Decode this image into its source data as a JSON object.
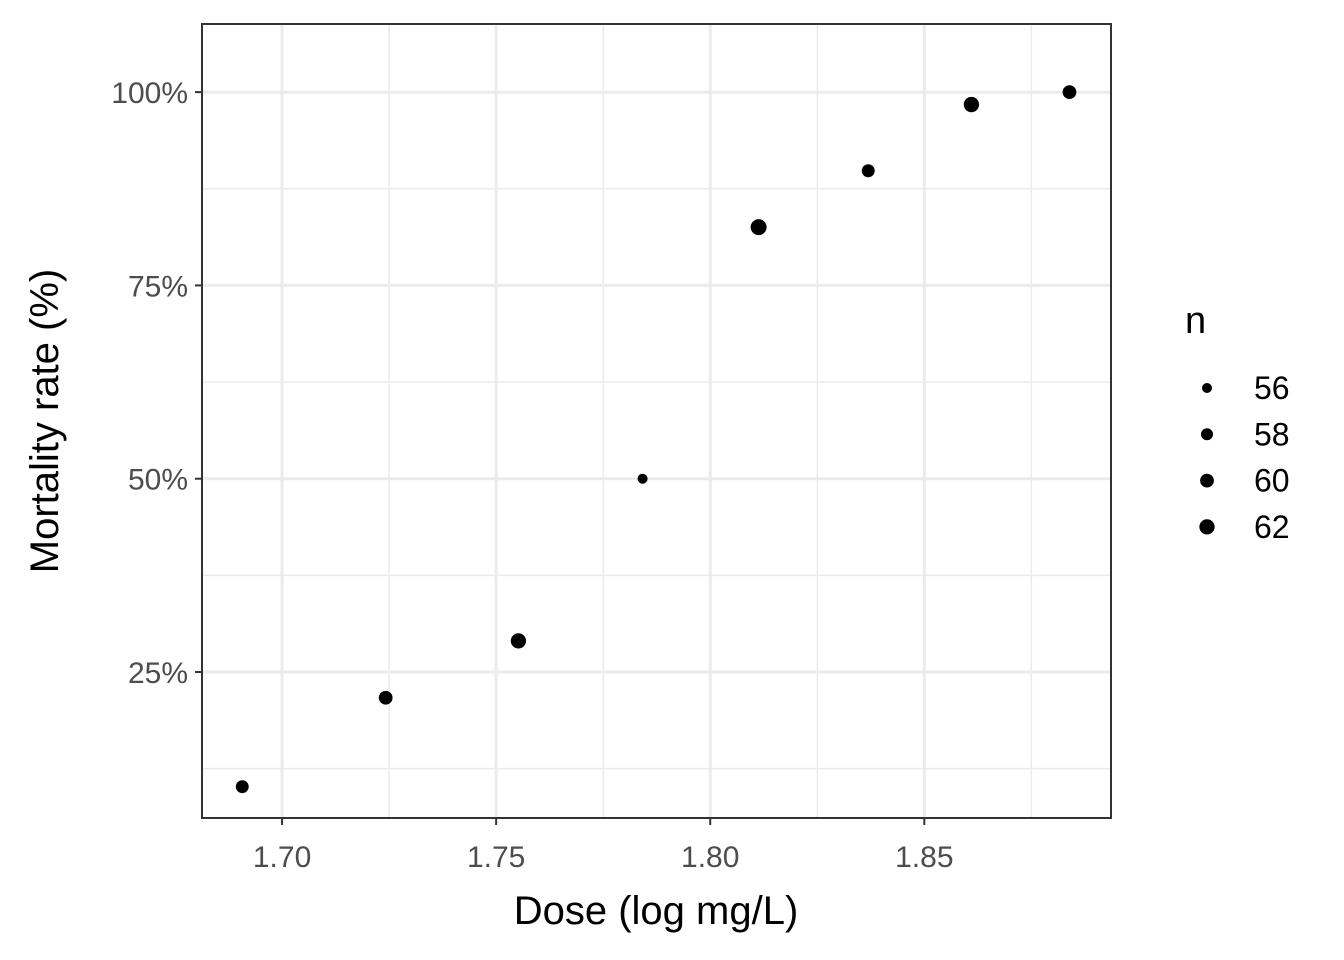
{
  "chart_data": {
    "type": "scatter",
    "xlabel": "Dose (log mg/L)",
    "ylabel": "Mortality rate (%)",
    "xlim": [
      1.6813,
      1.8936
    ],
    "ylim": [
      0.0612,
      1.0881
    ],
    "x_ticks": [
      1.7,
      1.75,
      1.8,
      1.85
    ],
    "x_tick_labels": [
      "1.70",
      "1.75",
      "1.80",
      "1.85"
    ],
    "x_minor_ticks": [
      1.725,
      1.775,
      1.825,
      1.875
    ],
    "y_ticks": [
      0.25,
      0.5,
      0.75,
      1.0
    ],
    "y_tick_labels": [
      "25%",
      "50%",
      "75%",
      "100%"
    ],
    "y_minor_ticks": [
      0.125,
      0.375,
      0.625,
      0.875
    ],
    "grid": true,
    "legend": {
      "title": "n",
      "position": "right",
      "items": [
        {
          "label": "56",
          "value": 56
        },
        {
          "label": "58",
          "value": 58
        },
        {
          "label": "60",
          "value": 60
        },
        {
          "label": "62",
          "value": 62
        }
      ]
    },
    "size_range": [
      56,
      63
    ],
    "points": [
      {
        "x": 1.6907,
        "y": 0.1017,
        "n": 59
      },
      {
        "x": 1.7242,
        "y": 0.2167,
        "n": 60
      },
      {
        "x": 1.7552,
        "y": 0.2903,
        "n": 62
      },
      {
        "x": 1.7842,
        "y": 0.5,
        "n": 56
      },
      {
        "x": 1.8113,
        "y": 0.8254,
        "n": 63
      },
      {
        "x": 1.8369,
        "y": 0.8983,
        "n": 59
      },
      {
        "x": 1.861,
        "y": 0.9839,
        "n": 62
      },
      {
        "x": 1.8839,
        "y": 1.0,
        "n": 60
      }
    ],
    "colors": {
      "point": "#000000",
      "panel_border": "#333333",
      "grid": "#ebebeb",
      "tick_text": "#4d4d4d"
    }
  }
}
